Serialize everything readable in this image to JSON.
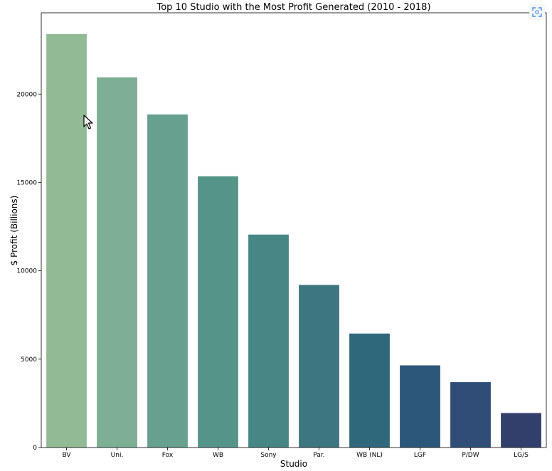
{
  "chart_data": {
    "type": "bar",
    "title": "Top 10 Studio with the Most Profit Generated (2010 - 2018)",
    "xlabel": "Studio",
    "ylabel": "$ Profit (Billions)",
    "categories": [
      "BV",
      "Uni.",
      "Fox",
      "WB",
      "Sony",
      "Par.",
      "WB (NL)",
      "LGF",
      "P/DW",
      "LG/S"
    ],
    "values": [
      23400,
      20950,
      18850,
      15350,
      12050,
      9200,
      6450,
      4650,
      3700,
      1950
    ],
    "ylim": [
      0,
      24600
    ],
    "yticks": [
      0,
      5000,
      10000,
      15000,
      20000
    ],
    "colors": [
      "#92bb95",
      "#7daf95",
      "#67a08e",
      "#559488",
      "#468685",
      "#3d7680",
      "#30687b",
      "#2d577a",
      "#304d78",
      "#323f6b"
    ],
    "grid": false,
    "legend": "none"
  },
  "ui": {
    "expand_icon": "expand-icon",
    "cursor_icon": "mouse-pointer-icon"
  }
}
